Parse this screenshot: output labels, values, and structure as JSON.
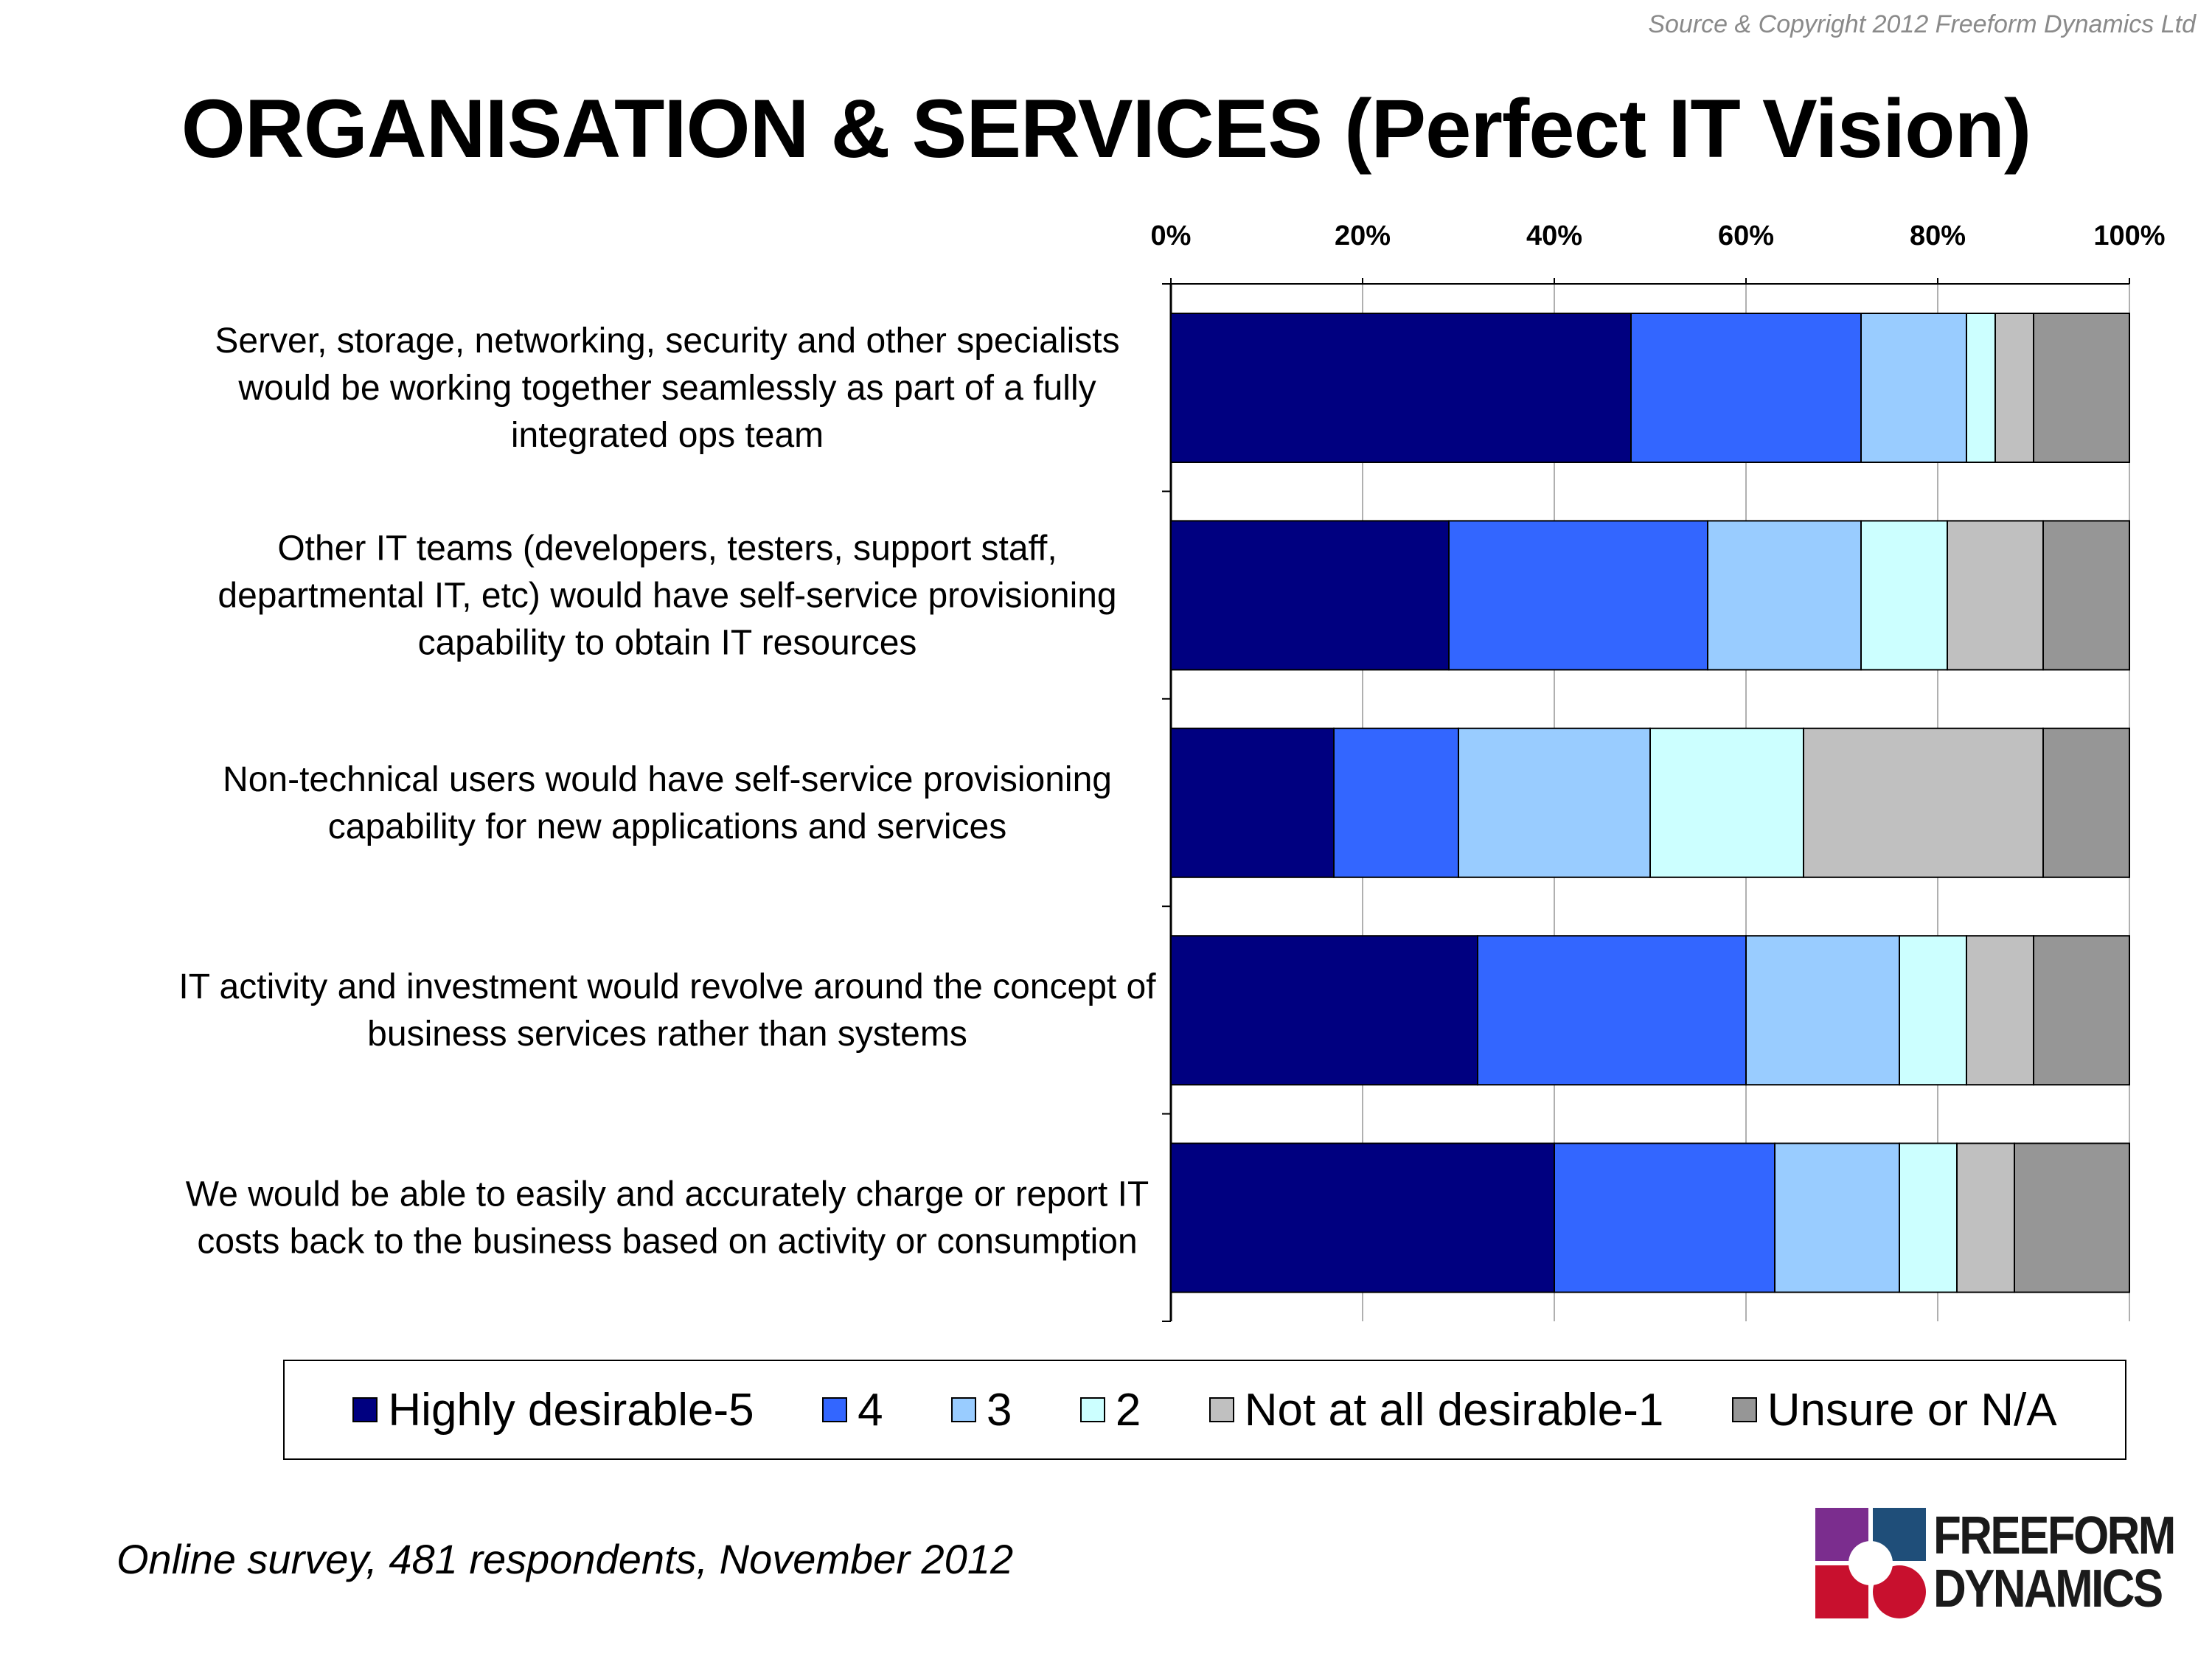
{
  "source": "Source & Copyright 2012 Freeform Dynamics Ltd",
  "title": "ORGANISATION & SERVICES (Perfect IT Vision)",
  "footnote": "Online survey, 481 respondents, November 2012",
  "logo": {
    "line1": "FREEFORM",
    "line2": "DYNAMICS"
  },
  "chart_data": {
    "type": "bar",
    "orientation": "horizontal",
    "stacked": "100%",
    "title": "ORGANISATION & SERVICES (Perfect IT Vision)",
    "xlim": [
      0,
      100
    ],
    "x_ticks": [
      "0%",
      "20%",
      "40%",
      "60%",
      "80%",
      "100%"
    ],
    "grid": true,
    "legend_position": "bottom",
    "categories": [
      [
        "Server, storage, networking, security and other specialists",
        "would be working together seamlessly as part of a fully",
        "integrated ops team"
      ],
      [
        "Other IT teams (developers, testers, support staff,",
        "departmental IT, etc) would have self-service provisioning",
        "capability to obtain IT resources"
      ],
      [
        "Non-technical users would have self-service provisioning",
        "capability for new applications and services"
      ],
      [
        "IT activity and investment would revolve around the concept of",
        "business services rather than systems"
      ],
      [
        "We would be able to easily and accurately charge or report IT",
        "costs back to the business based on activity or consumption"
      ]
    ],
    "series": [
      {
        "name": "Highly desirable-5",
        "color": "#000080",
        "values": [
          48,
          29,
          17,
          32,
          40
        ]
      },
      {
        "name": "4",
        "color": "#3366ff",
        "values": [
          24,
          27,
          13,
          28,
          23
        ]
      },
      {
        "name": "3",
        "color": "#99ccff",
        "values": [
          11,
          16,
          20,
          16,
          13
        ]
      },
      {
        "name": "2",
        "color": "#ccffff",
        "values": [
          3,
          9,
          16,
          7,
          6
        ]
      },
      {
        "name": "Not at all desirable-1",
        "color": "#c0c0c0",
        "values": [
          4,
          10,
          25,
          7,
          6
        ]
      },
      {
        "name": "Unsure or N/A",
        "color": "#969696",
        "values": [
          10,
          9,
          9,
          10,
          12
        ]
      }
    ]
  }
}
